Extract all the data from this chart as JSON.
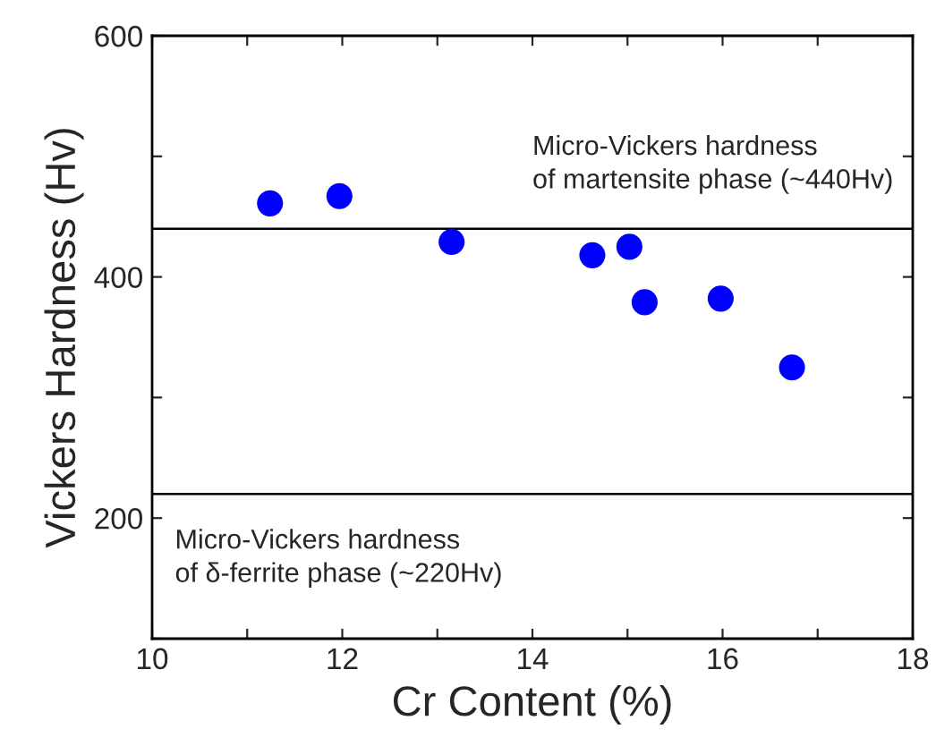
{
  "chart_data": {
    "type": "scatter",
    "xlabel": "Cr Content (%)",
    "ylabel": "Vickers Hardness (Hv)",
    "x": [
      11.24,
      11.97,
      13.15,
      14.63,
      15.02,
      15.18,
      15.98,
      16.73
    ],
    "series": [
      {
        "color": "#0000ff",
        "values": [
          461,
          467,
          429,
          418,
          425,
          379,
          382,
          325
        ]
      }
    ],
    "marker": "circle",
    "xlim": [
      10,
      18
    ],
    "xticks": [
      10,
      {
        "value": 11,
        "label": null
      },
      12,
      {
        "value": 13,
        "label": null
      },
      14,
      {
        "value": 15,
        "label": null
      },
      16,
      {
        "value": 17,
        "label": null
      },
      18
    ],
    "ylim": [
      100,
      600
    ],
    "yticks": [
      {
        "value": 100,
        "label": null
      },
      200,
      {
        "value": 300,
        "label": null
      },
      400,
      {
        "value": 500,
        "label": null
      },
      600
    ],
    "ref_lines": [
      {
        "axis": "y",
        "value": 440,
        "label": "Micro-Vickers hardness\nof martensite phase (~440Hv)",
        "color": "#000000"
      },
      {
        "axis": "y",
        "value": 220,
        "label": "Micro-Vickers hardness\nof δ-ferrite phase (~220Hv)",
        "color": "#000000"
      }
    ],
    "grid": false,
    "legend": false
  }
}
